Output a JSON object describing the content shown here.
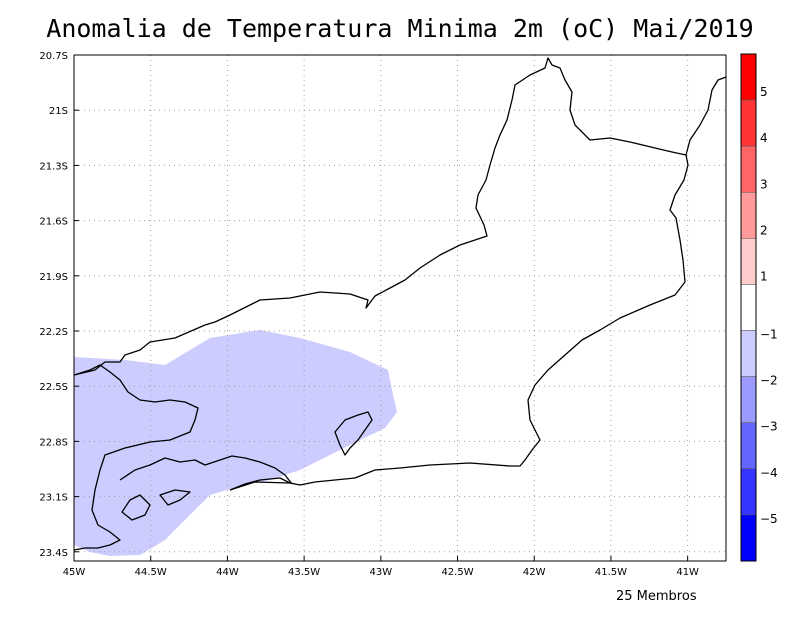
{
  "title": "Anomalia de Temperatura Minima 2m (oC) Mai/2019",
  "footer": "25 Membros",
  "map": {
    "lon_range": [
      -45,
      -40.75
    ],
    "lat_range": [
      -23.45,
      -20.7
    ],
    "lat_ticks": [
      "20.7S",
      "21S",
      "21.3S",
      "21.6S",
      "21.9S",
      "22.2S",
      "22.5S",
      "22.8S",
      "23.1S",
      "23.4S"
    ],
    "lon_ticks": [
      "45W",
      "44.5W",
      "44W",
      "43.5W",
      "43W",
      "42.5W",
      "42W",
      "41.5W",
      "41W"
    ],
    "grid": "dotted"
  },
  "colorbar": {
    "labels": [
      "5",
      "4",
      "3",
      "2",
      "1",
      "−1",
      "−2",
      "−3",
      "−4",
      "−5"
    ],
    "colors": [
      "#ff0000",
      "#ff3535",
      "#ff6565",
      "#ff9a9a",
      "#ffcccc",
      "#ffffff",
      "#ccccff",
      "#9a9aff",
      "#6565ff",
      "#3535ff",
      "#0000ff"
    ]
  },
  "anomaly_fill": {
    "color": "#ccccff",
    "range": "-2 to -1"
  }
}
